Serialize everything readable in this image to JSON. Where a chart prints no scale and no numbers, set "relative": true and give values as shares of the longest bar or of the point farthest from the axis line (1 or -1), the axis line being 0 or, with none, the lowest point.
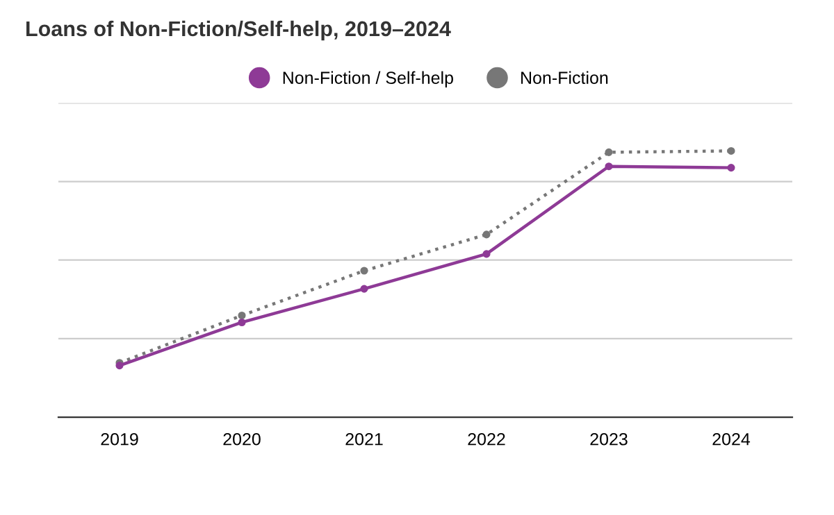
{
  "chart_data": {
    "type": "line",
    "title": "Loans of Non-Fiction/Self-help, 2019–2024",
    "categories": [
      "2019",
      "2020",
      "2021",
      "2022",
      "2023",
      "2024"
    ],
    "relative": true,
    "grid": "y",
    "legend": "top",
    "marker": "circle",
    "series": [
      {
        "name": "Non-Fiction / Self-help",
        "color": "#8e3a96",
        "line_style": "solid",
        "values": [
          0.194,
          0.356,
          0.482,
          0.613,
          0.942,
          0.937
        ]
      },
      {
        "name": "Non-Fiction",
        "color": "#777777",
        "line_style": "dotted",
        "values": [
          0.204,
          0.382,
          0.55,
          0.686,
          0.995,
          1.0
        ]
      }
    ]
  }
}
